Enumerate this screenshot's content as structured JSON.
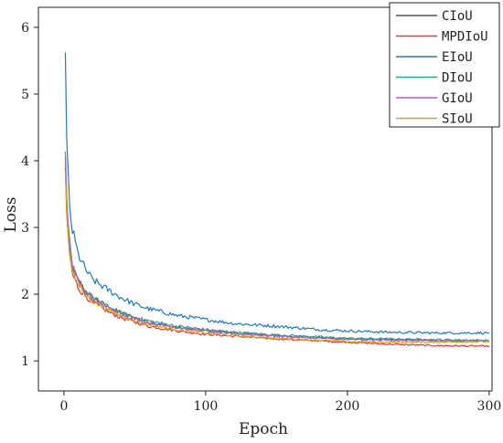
{
  "chart_data": {
    "type": "line",
    "xlabel": "Epoch",
    "ylabel": "Loss",
    "xlim": [
      -18,
      302
    ],
    "ylim": [
      0.55,
      6.3
    ],
    "xticks": [
      0,
      100,
      200,
      300
    ],
    "yticks": [
      1,
      2,
      3,
      4,
      5,
      6
    ],
    "grid": false,
    "legend_position": "top-right",
    "series": [
      {
        "name": "CIoU",
        "color": "#555555",
        "x": [
          1,
          2,
          4,
          6,
          10,
          15,
          20,
          30,
          40,
          50,
          60,
          80,
          100,
          120,
          150,
          180,
          200,
          230,
          260,
          300
        ],
        "y": [
          4.0,
          3.3,
          2.75,
          2.4,
          2.2,
          2.05,
          1.95,
          1.82,
          1.72,
          1.65,
          1.58,
          1.5,
          1.45,
          1.42,
          1.38,
          1.35,
          1.33,
          1.32,
          1.31,
          1.3
        ]
      },
      {
        "name": "MPDIoU",
        "color": "#ee3333",
        "x": [
          1,
          2,
          4,
          6,
          10,
          15,
          20,
          30,
          40,
          50,
          60,
          80,
          100,
          120,
          150,
          180,
          200,
          230,
          260,
          300
        ],
        "y": [
          3.9,
          3.1,
          2.6,
          2.3,
          2.1,
          1.98,
          1.88,
          1.75,
          1.65,
          1.58,
          1.52,
          1.45,
          1.4,
          1.37,
          1.33,
          1.3,
          1.28,
          1.25,
          1.23,
          1.22
        ]
      },
      {
        "name": "EIoU",
        "color": "#1f78c8",
        "x": [
          1,
          2,
          4,
          6,
          10,
          15,
          20,
          30,
          40,
          50,
          60,
          80,
          100,
          120,
          150,
          180,
          200,
          230,
          260,
          300
        ],
        "y": [
          5.55,
          4.2,
          3.3,
          2.95,
          2.6,
          2.38,
          2.22,
          2.08,
          1.95,
          1.85,
          1.78,
          1.68,
          1.62,
          1.56,
          1.52,
          1.47,
          1.45,
          1.43,
          1.42,
          1.42
        ]
      },
      {
        "name": "DIoU",
        "color": "#2ca58d",
        "x": [
          1,
          2,
          4,
          6,
          10,
          15,
          20,
          30,
          40,
          50,
          60,
          80,
          100,
          120,
          150,
          180,
          200,
          230,
          260,
          300
        ],
        "y": [
          4.05,
          3.3,
          2.7,
          2.4,
          2.18,
          2.05,
          1.95,
          1.82,
          1.72,
          1.65,
          1.6,
          1.52,
          1.47,
          1.43,
          1.39,
          1.36,
          1.34,
          1.33,
          1.32,
          1.31
        ]
      },
      {
        "name": "GIoU",
        "color": "#b05cc8",
        "x": [
          1,
          2,
          4,
          6,
          10,
          15,
          20,
          30,
          40,
          50,
          60,
          80,
          100,
          120,
          150,
          180,
          200,
          230,
          260,
          300
        ],
        "y": [
          4.1,
          3.35,
          2.72,
          2.42,
          2.2,
          2.05,
          1.93,
          1.8,
          1.7,
          1.63,
          1.57,
          1.5,
          1.45,
          1.41,
          1.37,
          1.34,
          1.32,
          1.31,
          1.3,
          1.3
        ]
      },
      {
        "name": "SIoU",
        "color": "#d4a017",
        "x": [
          1,
          2,
          4,
          6,
          10,
          15,
          20,
          30,
          40,
          50,
          60,
          80,
          100,
          120,
          150,
          180,
          200,
          230,
          260,
          300
        ],
        "y": [
          3.95,
          3.2,
          2.65,
          2.35,
          2.15,
          2.0,
          1.9,
          1.77,
          1.68,
          1.6,
          1.54,
          1.47,
          1.42,
          1.38,
          1.34,
          1.31,
          1.29,
          1.28,
          1.28,
          1.29
        ]
      }
    ]
  }
}
